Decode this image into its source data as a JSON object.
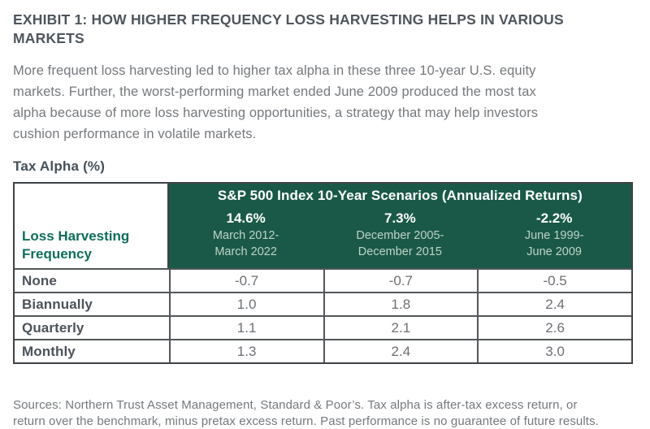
{
  "header": {
    "title_line1": "EXHIBIT 1: HOW HIGHER FREQUENCY LOSS HARVESTING HELPS IN VARIOUS",
    "title_line2": "MARKETS",
    "description_line1": "More frequent loss harvesting led to higher tax alpha in these three 10-year U.S. equity",
    "description_line2": "markets. Further, the worst-performing market ended June 2009 produced the most tax",
    "description_line3": "alpha because of more loss harvesting opportunities, a strategy that may help investors",
    "description_line4": "cushion performance in volatile markets."
  },
  "table": {
    "units_label": "Tax Alpha (%)",
    "row_header_title": "Loss Harvesting Frequency",
    "group_header": "S&P 500 Index 10-Year Scenarios (Annualized Returns)",
    "scenarios": [
      {
        "annualized_return": "14.6%",
        "period_line1": "March 2012-",
        "period_line2": "March 2022"
      },
      {
        "annualized_return": "7.3%",
        "period_line1": "December 2005-",
        "period_line2": "December 2015"
      },
      {
        "annualized_return": "-2.2%",
        "period_line1": "June 1999-",
        "period_line2": "June 2009"
      }
    ],
    "rows": [
      {
        "label": "None",
        "values": [
          "-0.7",
          "-0.7",
          "-0.5"
        ]
      },
      {
        "label": "Biannually",
        "values": [
          "1.0",
          "1.8",
          "2.4"
        ]
      },
      {
        "label": "Quarterly",
        "values": [
          "1.1",
          "2.1",
          "2.6"
        ]
      },
      {
        "label": "Monthly",
        "values": [
          "1.3",
          "2.4",
          "3.0"
        ]
      }
    ]
  },
  "footer": {
    "sources_line1": "Sources: Northern Trust Asset Management, Standard & Poor’s. Tax alpha is after-tax excess return, or",
    "sources_line2": "return over the benchmark, minus pretax excess return. Past performance is no guarantee of future results."
  },
  "colors": {
    "header_green": "#1A5947",
    "frequency_label_teal": "#0E6E5B",
    "title_gray": "#4F555C",
    "body_gray": "#75797D",
    "units_label_slate": "#44505A",
    "row_label_gray": "#4C5258",
    "value_gray": "#6B7075",
    "border_outer": "#3F4346",
    "border_inner": "#53575A",
    "period_text_light_green": "#BFD3CA"
  },
  "chart_data": {
    "type": "table",
    "title": "EXHIBIT 1: HOW HIGHER FREQUENCY LOSS HARVESTING HELPS IN VARIOUS MARKETS",
    "units": "Tax Alpha (%)",
    "column_group_header": "S&P 500 Index 10-Year Scenarios (Annualized Returns)",
    "columns": [
      "14.6% (March 2012-March 2022)",
      "7.3% (December 2005-December 2015)",
      "-2.2% (June 1999-June 2009)"
    ],
    "row_label_header": "Loss Harvesting Frequency",
    "row_labels": [
      "None",
      "Biannually",
      "Quarterly",
      "Monthly"
    ],
    "values": [
      [
        -0.7,
        -0.7,
        -0.5
      ],
      [
        1.0,
        1.8,
        2.4
      ],
      [
        1.1,
        2.1,
        2.6
      ],
      [
        1.3,
        2.4,
        3.0
      ]
    ]
  }
}
